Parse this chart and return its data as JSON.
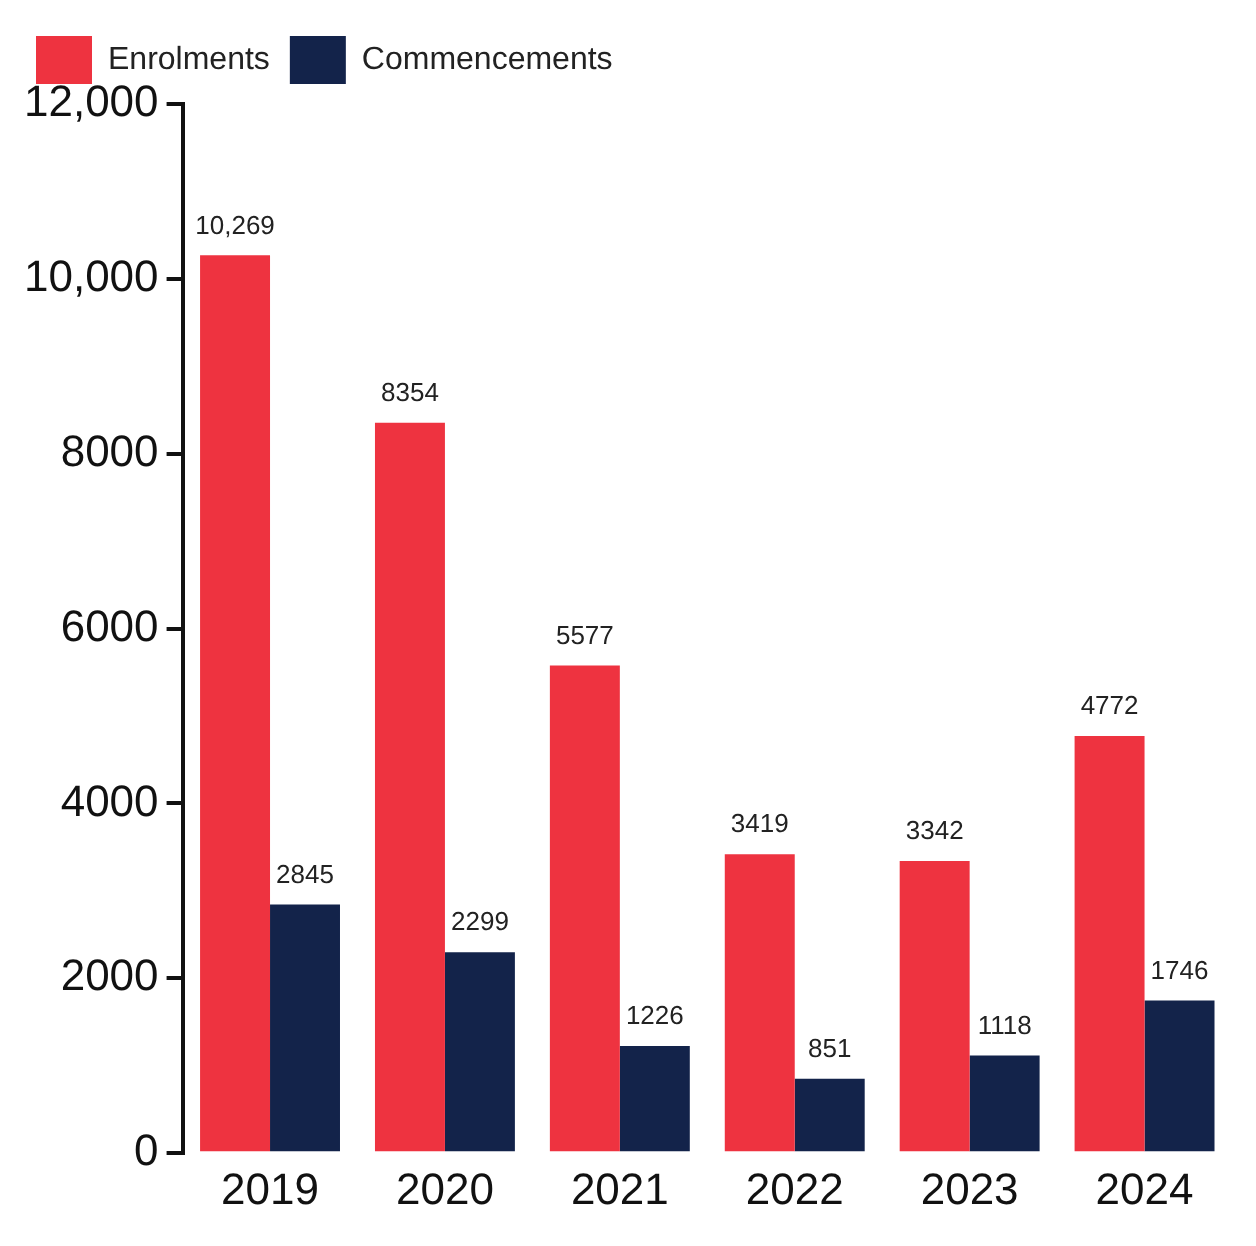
{
  "chart_data": {
    "type": "bar",
    "categories": [
      "2019",
      "2020",
      "2021",
      "2022",
      "2023",
      "2024"
    ],
    "series": [
      {
        "name": "Enrolments",
        "color": "#ee3340",
        "values": [
          10269,
          8354,
          5577,
          3419,
          3342,
          4772
        ],
        "value_labels": [
          "10,269",
          "8354",
          "5577",
          "3419",
          "3342",
          "4772"
        ]
      },
      {
        "name": "Commencements",
        "color": "#13234a",
        "values": [
          2845,
          2299,
          1226,
          851,
          1118,
          1746
        ],
        "value_labels": [
          "2845",
          "2299",
          "1226",
          "851",
          "1118",
          "1746"
        ]
      }
    ],
    "ylim": [
      0,
      12000
    ],
    "yticks": [
      0,
      2000,
      4000,
      6000,
      8000,
      {
        "value": 10000,
        "label": "10,000"
      },
      {
        "value": 12000,
        "label": "12,000"
      }
    ],
    "grid": false,
    "legend": "top left"
  }
}
